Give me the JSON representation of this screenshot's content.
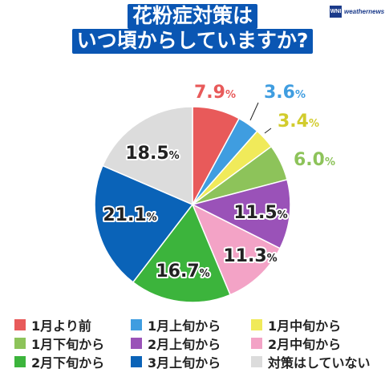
{
  "title": {
    "line1": "花粉症対策は",
    "line2": "いつ頃からしていますか?"
  },
  "logo": {
    "mark": "WNI",
    "text": "weathernews"
  },
  "colors": {
    "title_bg": "#0a56b3",
    "label_stroke": "#ffffff"
  },
  "chart_data": {
    "type": "pie",
    "start_angle_deg": 0,
    "direction": "clockwise",
    "categories": [
      "1月より前",
      "1月上旬から",
      "1月中旬から",
      "1月下旬から",
      "2月上旬から",
      "2月中旬から",
      "2月下旬から",
      "3月上旬から",
      "対策はしていない"
    ],
    "values": [
      7.9,
      3.6,
      3.4,
      6.0,
      11.5,
      11.3,
      16.7,
      21.1,
      18.5
    ],
    "unit": "%",
    "colors": [
      "#e85a5a",
      "#3f9de0",
      "#f0ea5a",
      "#8dc35a",
      "#9a52b8",
      "#f3a3c6",
      "#3cb43c",
      "#0a63b8",
      "#dcdcdc"
    ],
    "label_colors": [
      "#e85a5a",
      "#3f9de0",
      "#d2cc2e",
      "#8dc35a",
      "#9a52b8",
      "#f3a3c6",
      "#3cb43c",
      "#0a63b8",
      "#c8c8c8"
    ],
    "value_labels": [
      "7.9",
      "3.6",
      "3.4",
      "6.0",
      "11.5",
      "11.3",
      "16.7",
      "21.1",
      "18.5"
    ],
    "legend_placement": "bottom"
  }
}
